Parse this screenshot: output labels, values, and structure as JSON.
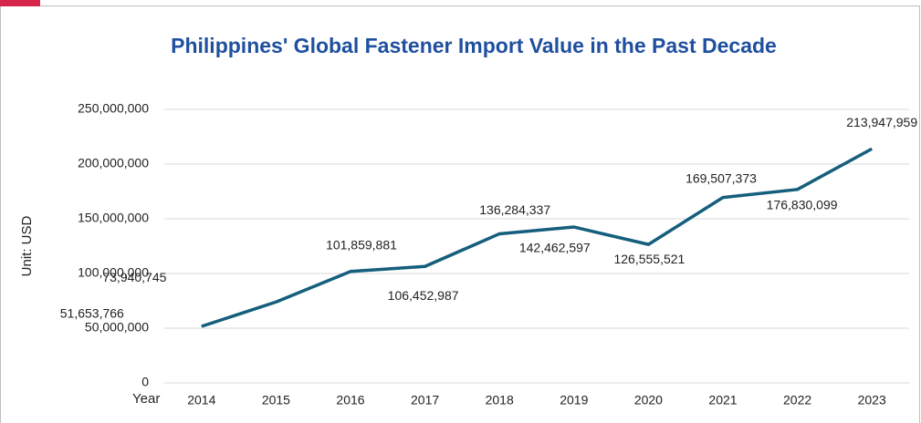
{
  "chart_data": {
    "type": "line",
    "title": "Philippines' Global Fastener Import Value in the Past Decade",
    "y_label": "Unit: USD",
    "x_label": "Year",
    "categories": [
      "2014",
      "2015",
      "2016",
      "2017",
      "2018",
      "2019",
      "2020",
      "2021",
      "2022",
      "2023"
    ],
    "series": [
      {
        "color": "#155e7c",
        "values": [
          51653766,
          73940745,
          101859881,
          106452987,
          136284337,
          142462597,
          126555521,
          169507373,
          176830099,
          213947959
        ],
        "value_labels": [
          "51,653,766",
          "73,940,745",
          "101,859,881",
          "106,452,987",
          "136,284,337",
          "142,462,597",
          "126,555,521",
          "169,507,373",
          "176,830,099",
          "213,947,959"
        ]
      }
    ],
    "ylim": [
      0,
      250000000
    ],
    "yticks": [
      0,
      {
        "value": 50000000,
        "label": "50,000,000"
      },
      {
        "value": 100000000,
        "label": "100,000,000"
      },
      {
        "value": 150000000,
        "label": "150,000,000"
      },
      {
        "value": 200000000,
        "label": "200,000,000"
      },
      {
        "value": 250000000,
        "label": "250,000,000"
      }
    ],
    "grid": true
  }
}
